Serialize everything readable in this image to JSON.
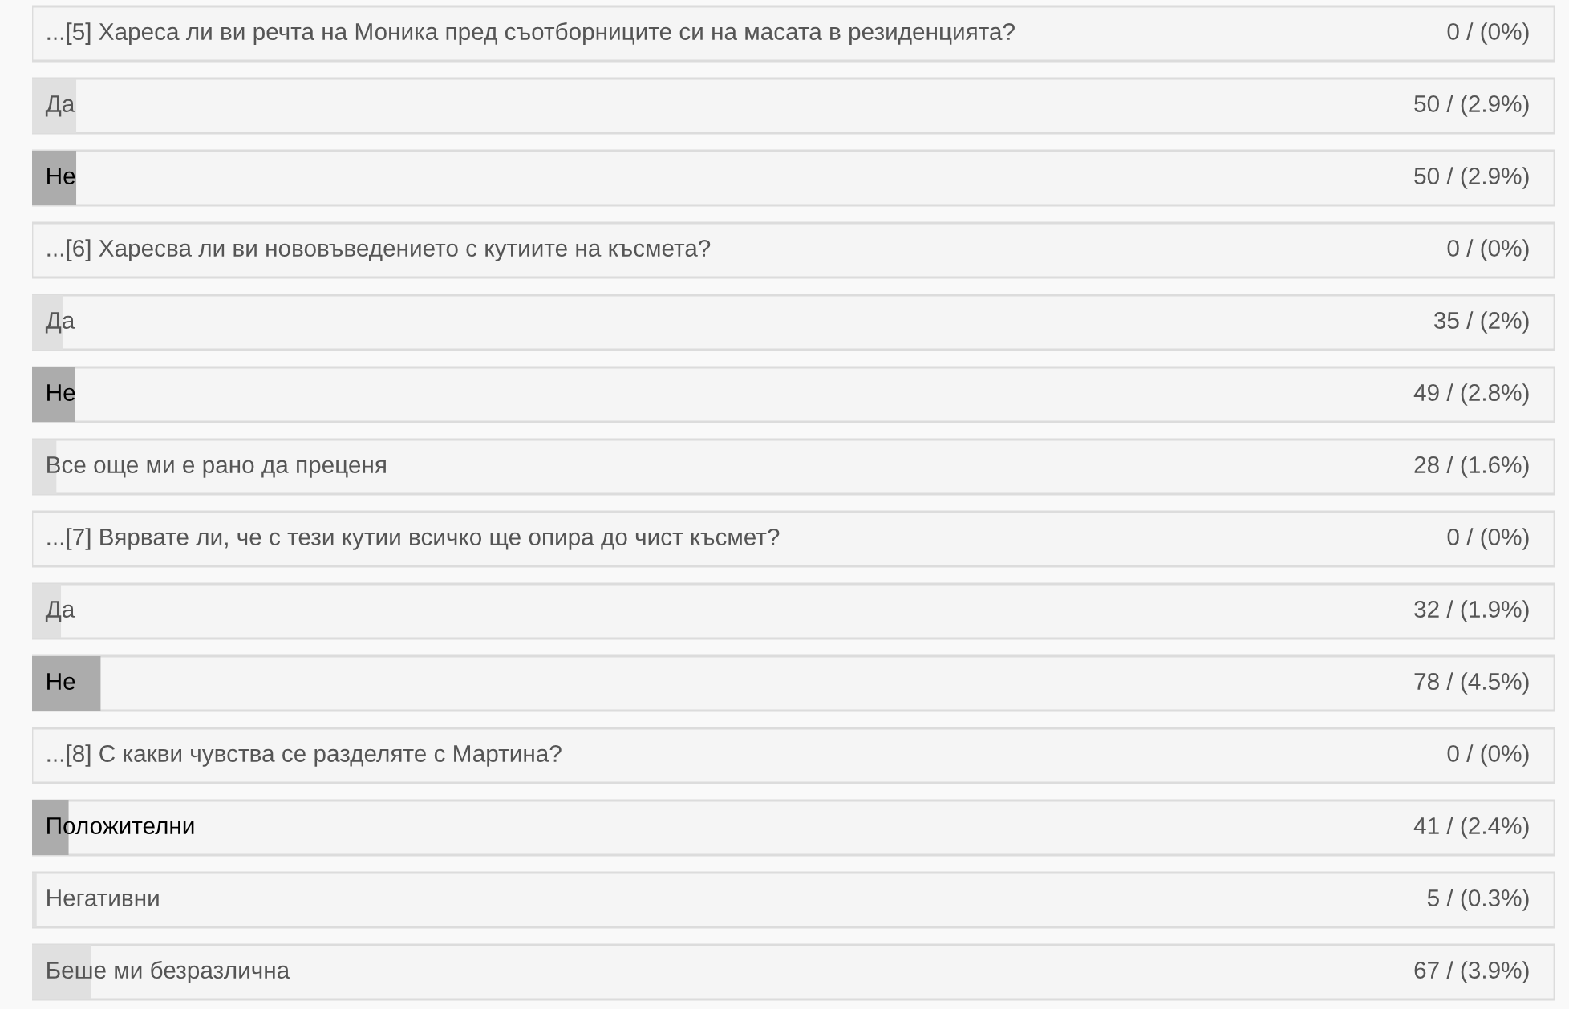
{
  "chart_data": {
    "type": "bar",
    "orientation": "horizontal",
    "categories": [
      "...[5] Хареса ли ви речта на Моника пред съотборниците си на масата в резиденцията?",
      "Да",
      "Не",
      "...[6] Харесва ли ви нововъведението с кутиите на късмета?",
      "Да",
      "Не",
      "Все още ми е рано да преценя",
      "...[7] Вярвате ли, че с тези кутии всичко ще опира до чист късмет?",
      "Да",
      "Не",
      "...[8] С какви чувства се разделяте с Мартина?",
      "Положителни",
      "Негативни",
      "Беше ми безразлична"
    ],
    "values": [
      0,
      2.9,
      2.9,
      0,
      2,
      2.8,
      1.6,
      0,
      1.9,
      4.5,
      0,
      2.4,
      0.3,
      3.9
    ],
    "value_labels": [
      "0 / (0%)",
      "50 / (2.9%)",
      "50 / (2.9%)",
      "0 / (0%)",
      "35 / (2%)",
      "49 / (2.8%)",
      "28 / (1.6%)",
      "0 / (0%)",
      "32 / (1.9%)",
      "78 / (4.5%)",
      "0 / (0%)",
      "41 / (2.4%)",
      "5 / (0.3%)",
      "67 / (3.9%)"
    ],
    "colors": [
      "#e0e0e0",
      "#e0e0e0",
      "#acacac",
      "#e0e0e0",
      "#e0e0e0",
      "#acacac",
      "#e0e0e0",
      "#e0e0e0",
      "#e0e0e0",
      "#acacac",
      "#e0e0e0",
      "#acacac",
      "#e0e0e0",
      "#e0e0e0"
    ],
    "xlim": [
      0,
      100
    ],
    "tick_labels": "y"
  }
}
